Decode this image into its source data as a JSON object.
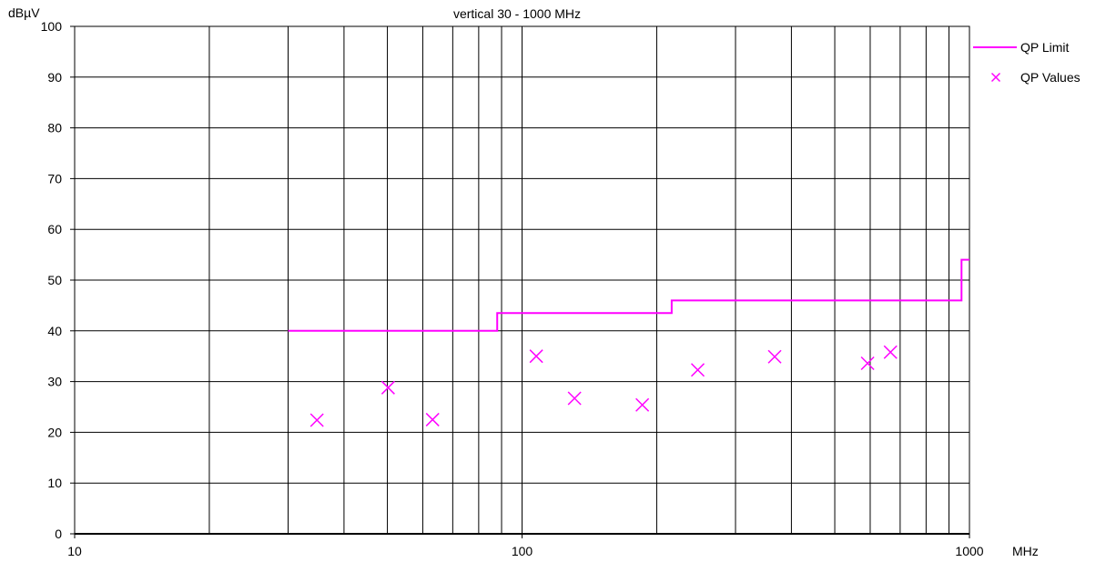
{
  "chart_data": {
    "type": "scatter",
    "title": "vertical 30 - 1000 MHz",
    "xlabel": "MHz",
    "ylabel": "dBµV",
    "x_scale": "log",
    "xlim": [
      10,
      1000
    ],
    "ylim": [
      0,
      100
    ],
    "x_tick_labels": [
      "10",
      "100",
      "1000"
    ],
    "y_tick_labels": [
      "0",
      "10",
      "20",
      "30",
      "40",
      "50",
      "60",
      "70",
      "80",
      "90",
      "100"
    ],
    "x_gridlines": [
      20,
      30,
      40,
      50,
      60,
      70,
      80,
      90,
      100,
      200,
      300,
      400,
      500,
      600,
      700,
      800,
      900
    ],
    "y_gridlines": [
      10,
      20,
      30,
      40,
      50,
      60,
      70,
      80,
      90,
      100
    ],
    "grid": true,
    "legend": "top-right",
    "series": [
      {
        "name": "QP Limit",
        "type": "step-line",
        "color": "#ff00ff",
        "points": [
          [
            30,
            40
          ],
          [
            88,
            40
          ],
          [
            88,
            43.5
          ],
          [
            216,
            43.5
          ],
          [
            216,
            46
          ],
          [
            960,
            46
          ],
          [
            960,
            54
          ],
          [
            1000,
            54
          ]
        ]
      },
      {
        "name": "QP Values",
        "type": "scatter",
        "marker": "x",
        "color": "#ff00ff",
        "points": [
          [
            34.8,
            22.4
          ],
          [
            50.2,
            28.8
          ],
          [
            63.1,
            22.5
          ],
          [
            107.6,
            35
          ],
          [
            131,
            26.7
          ],
          [
            185.7,
            25.4
          ],
          [
            247,
            32.3
          ],
          [
            367,
            34.9
          ],
          [
            592,
            33.6
          ],
          [
            666,
            35.8
          ]
        ]
      }
    ]
  }
}
